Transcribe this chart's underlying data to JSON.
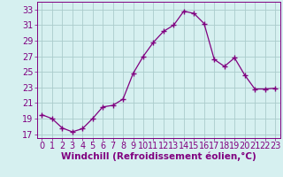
{
  "x": [
    0,
    1,
    2,
    3,
    4,
    5,
    6,
    7,
    8,
    9,
    10,
    11,
    12,
    13,
    14,
    15,
    16,
    17,
    18,
    19,
    20,
    21,
    22,
    23
  ],
  "y": [
    19.5,
    19.0,
    17.8,
    17.3,
    17.7,
    19.0,
    20.5,
    20.7,
    21.5,
    24.8,
    27.0,
    28.8,
    30.2,
    31.0,
    32.8,
    32.5,
    31.2,
    26.6,
    25.7,
    26.8,
    24.6,
    22.8,
    22.8,
    22.9
  ],
  "line_color": "#800080",
  "marker": "+",
  "marker_size": 4,
  "bg_color": "#d6f0f0",
  "grid_color": "#aacccc",
  "xlabel": "Windchill (Refroidissement éolien,°C)",
  "xlim": [
    -0.5,
    23.5
  ],
  "ylim": [
    16.5,
    34.0
  ],
  "yticks": [
    17,
    19,
    21,
    23,
    25,
    27,
    29,
    31,
    33
  ],
  "xticks": [
    0,
    1,
    2,
    3,
    4,
    5,
    6,
    7,
    8,
    9,
    10,
    11,
    12,
    13,
    14,
    15,
    16,
    17,
    18,
    19,
    20,
    21,
    22,
    23
  ],
  "tick_color": "#800080",
  "font_size": 7.0,
  "xlabel_fontsize": 7.5
}
